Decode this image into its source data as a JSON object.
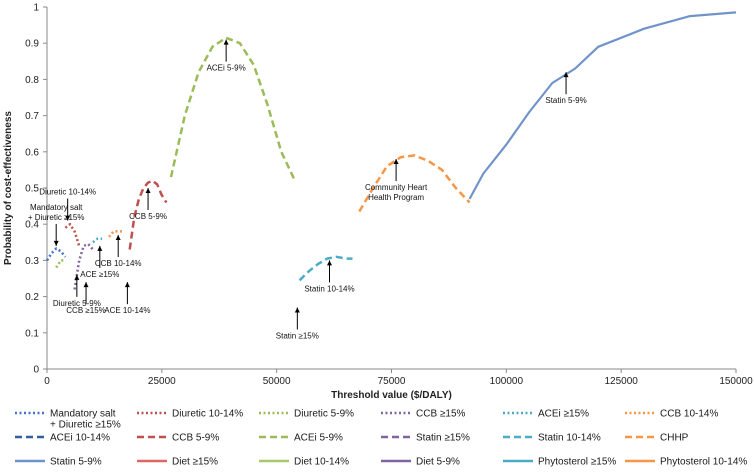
{
  "chart_data": {
    "type": "line",
    "title": "",
    "xlabel": "Threshold value ($/DALY)",
    "ylabel": "Probability of cost-effectiveness",
    "xlim": [
      0,
      150000
    ],
    "ylim": [
      0,
      1
    ],
    "x_ticks": [
      0,
      25000,
      50000,
      75000,
      100000,
      125000,
      150000
    ],
    "x_tick_labels": [
      "0",
      "25000",
      "50000",
      "75000",
      "100000",
      "125000",
      "150000"
    ],
    "y_ticks": [
      0,
      0.1,
      0.2,
      0.3,
      0.4,
      0.5,
      0.6,
      0.7,
      0.8,
      0.9,
      1
    ],
    "y_tick_labels": [
      "0",
      "0.1",
      "0.2",
      "0.3",
      "0.4",
      "0.5",
      "0.6",
      "0.7",
      "0.8",
      "0.9",
      "1"
    ],
    "legend_position": "bottom",
    "series": [
      {
        "name": "Mandatory salt + Diuretic ≥15%",
        "color": "#4472C4",
        "dash": "dot",
        "x": [
          0,
          1000,
          2000,
          3000,
          4000
        ],
        "y": [
          0.3,
          0.32,
          0.333,
          0.325,
          0.31
        ]
      },
      {
        "name": "Diuretic 10-14%",
        "color": "#C0504D",
        "dash": "dot",
        "x": [
          4000,
          5000,
          6000,
          7000
        ],
        "y": [
          0.39,
          0.4,
          0.38,
          0.34
        ]
      },
      {
        "name": "Diuretic 5-9%",
        "color": "#9BBB59",
        "dash": "dot",
        "x": [
          2000,
          3000,
          4000
        ],
        "y": [
          0.28,
          0.3,
          0.3
        ]
      },
      {
        "name": "CCB ≥15%",
        "color": "#8064A2",
        "dash": "dot",
        "x": [
          6000,
          7000,
          8000,
          9000,
          10000
        ],
        "y": [
          0.22,
          0.3,
          0.34,
          0.345,
          0.33
        ]
      },
      {
        "name": "ACEi ≥15%",
        "color": "#4BACC6",
        "dash": "dot",
        "x": [
          10000,
          11000,
          12000
        ],
        "y": [
          0.35,
          0.36,
          0.36
        ]
      },
      {
        "name": "CCB 10-14%",
        "color": "#F79646",
        "dash": "dot",
        "x": [
          13500,
          14500,
          15500,
          16500
        ],
        "y": [
          0.365,
          0.38,
          0.38,
          0.38
        ]
      },
      {
        "name": "ACEi 10-14%",
        "color": "#2F5F9E",
        "dash": "dash",
        "x": [],
        "y": []
      },
      {
        "name": "CCB 5-9%",
        "color": "#C0504D",
        "dash": "dash",
        "x": [
          18000,
          19000,
          20000,
          21000,
          22000,
          23000,
          24000,
          25000,
          26000
        ],
        "y": [
          0.33,
          0.42,
          0.47,
          0.5,
          0.515,
          0.52,
          0.51,
          0.48,
          0.46
        ]
      },
      {
        "name": "ACEi 5-9%",
        "color": "#9BBB59",
        "dash": "dash",
        "x": [
          27000,
          30000,
          33000,
          36000,
          39000,
          42000,
          45000,
          48000,
          51000,
          54000
        ],
        "y": [
          0.53,
          0.7,
          0.82,
          0.89,
          0.915,
          0.9,
          0.84,
          0.73,
          0.6,
          0.52
        ]
      },
      {
        "name": "Statin ≥15%",
        "color": "#8064A2",
        "dash": "dash",
        "x": [],
        "y": []
      },
      {
        "name": "Statin 10-14%",
        "color": "#4BACC6",
        "dash": "dash",
        "x": [
          55000,
          57000,
          59000,
          61000,
          63000,
          65000,
          66500
        ],
        "y": [
          0.245,
          0.27,
          0.29,
          0.305,
          0.31,
          0.305,
          0.305
        ]
      },
      {
        "name": "CHHP",
        "color": "#F79646",
        "dash": "dash",
        "x": [
          68000,
          71000,
          74000,
          77000,
          80000,
          83000,
          86000,
          89000,
          92000
        ],
        "y": [
          0.435,
          0.5,
          0.56,
          0.585,
          0.59,
          0.575,
          0.55,
          0.5,
          0.46
        ]
      },
      {
        "name": "Statin 5-9%",
        "color": "#7094C9",
        "dash": "solid",
        "x": [
          92000,
          95000,
          100000,
          105000,
          110000,
          115000,
          120000,
          130000,
          140000,
          150000
        ],
        "y": [
          0.47,
          0.54,
          0.62,
          0.71,
          0.79,
          0.83,
          0.89,
          0.94,
          0.975,
          0.985
        ]
      },
      {
        "name": "Diet ≥15%",
        "color": "#E06666",
        "dash": "solid",
        "x": [],
        "y": []
      },
      {
        "name": "Diet 10-14%",
        "color": "#A8C86E",
        "dash": "solid",
        "x": [],
        "y": []
      },
      {
        "name": "Diet 5-9%",
        "color": "#8064A2",
        "dash": "solid",
        "x": [],
        "y": []
      },
      {
        "name": "Phytosterol ≥15%",
        "color": "#4BACC6",
        "dash": "solid",
        "x": [],
        "y": []
      },
      {
        "name": "Phytosterol 10-14%",
        "color": "#F79646",
        "dash": "solid",
        "x": [],
        "y": []
      }
    ],
    "annotations": [
      {
        "lines": [
          "Mandatory salt",
          "+ Diuretic ≥15%"
        ],
        "x": 2000,
        "y": 0.34,
        "text_above": true
      },
      {
        "lines": [
          "Diuretic 10-14%"
        ],
        "x": 4500,
        "y": 0.41,
        "text_above": true
      },
      {
        "lines": [
          "Diuretic 5-9%"
        ],
        "x": 6500,
        "y": 0.26,
        "text_above": false
      },
      {
        "lines": [
          "CCB ≥15%"
        ],
        "x": 8500,
        "y": 0.24,
        "text_above": false
      },
      {
        "lines": [
          "ACE ≥15%"
        ],
        "x": 11500,
        "y": 0.34,
        "text_above": false
      },
      {
        "lines": [
          "CCB 10-14%"
        ],
        "x": 15500,
        "y": 0.37,
        "text_above": false
      },
      {
        "lines": [
          "ACE 10-14%"
        ],
        "x": 17500,
        "y": 0.24,
        "text_above": false
      },
      {
        "lines": [
          "CCB 5-9%"
        ],
        "x": 22000,
        "y": 0.5,
        "text_above": false
      },
      {
        "lines": [
          "ACEi 5-9%"
        ],
        "x": 39000,
        "y": 0.91,
        "text_above": false
      },
      {
        "lines": [
          "Statin ≥15%"
        ],
        "x": 54500,
        "y": 0.17,
        "text_above": false
      },
      {
        "lines": [
          "Statin 10-14%"
        ],
        "x": 61500,
        "y": 0.3,
        "text_above": false
      },
      {
        "lines": [
          "Community Heart",
          "Health Program"
        ],
        "x": 76000,
        "y": 0.58,
        "text_above": false
      },
      {
        "lines": [
          "Statin 5-9%"
        ],
        "x": 113000,
        "y": 0.82,
        "text_above": false
      }
    ]
  }
}
